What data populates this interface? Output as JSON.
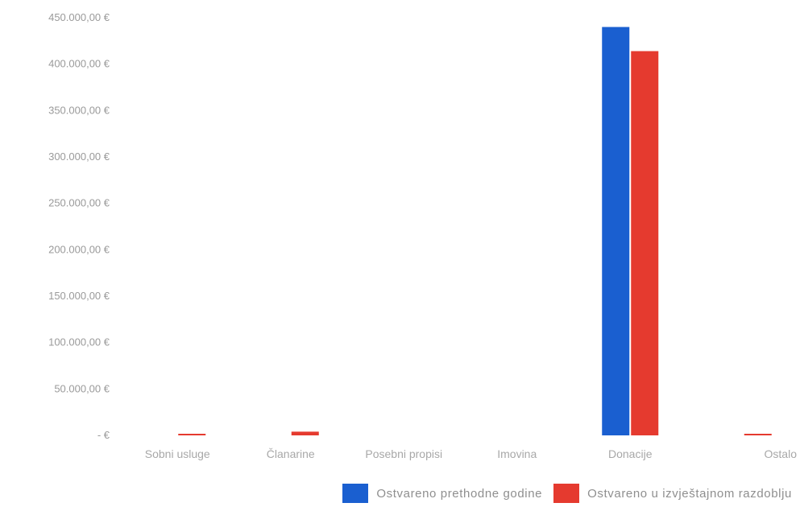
{
  "chart_data": {
    "type": "bar",
    "title": "",
    "xlabel": "",
    "ylabel": "",
    "categories": [
      "Sobni usluge",
      "Članarine",
      "Posebni propisi",
      "Imovina",
      "Donacije",
      "Ostalo"
    ],
    "series": [
      {
        "name": "Ostvareno prethodne godine",
        "color": "#1a5fd0",
        "values": [
          0,
          0,
          0,
          0,
          440000,
          0
        ]
      },
      {
        "name": "Ostvareno u izvještajnom razdoblju",
        "color": "#e53a2f",
        "values": [
          1500,
          4000,
          0,
          0,
          414000,
          1200
        ]
      }
    ],
    "ylim": [
      0,
      450000
    ],
    "yticks": [
      0,
      50000,
      100000,
      150000,
      200000,
      250000,
      300000,
      350000,
      400000,
      450000
    ],
    "ytick_labels": [
      "- €",
      "50.000,00 €",
      "100.000,00 €",
      "150.000,00 €",
      "200.000,00 €",
      "250.000,00 €",
      "300.000,00 €",
      "350.000,00 €",
      "400.000,00 €",
      "450.000,00 €"
    ],
    "grid": false,
    "legend_position": "bottom"
  }
}
